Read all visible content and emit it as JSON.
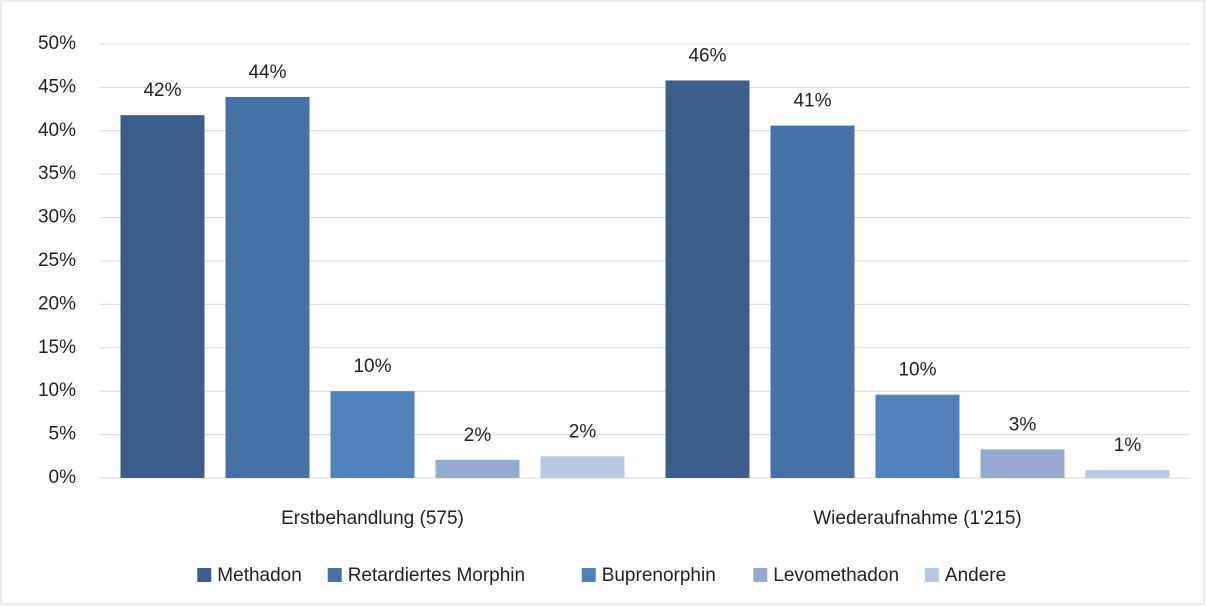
{
  "chart_data": {
    "type": "bar",
    "categories": [
      "Erstbehandlung (575)",
      "Wiederaufnahme (1'215)"
    ],
    "series": [
      {
        "name": "Methadon",
        "color": "#3b5e8c",
        "values": [
          41.8,
          45.8
        ],
        "value_labels": [
          "42%",
          "46%"
        ]
      },
      {
        "name": "Retardiertes Morphin",
        "color": "#4472a6",
        "values": [
          43.9,
          40.6
        ],
        "value_labels": [
          "44%",
          "41%"
        ]
      },
      {
        "name": "Buprenorphin",
        "color": "#4f81bd",
        "values": [
          10.0,
          9.6
        ],
        "value_labels": [
          "10%",
          "10%"
        ]
      },
      {
        "name": "Levomethadon",
        "color": "#95aad0",
        "values": [
          2.1,
          3.3
        ],
        "value_labels": [
          "2%",
          "3%"
        ]
      },
      {
        "name": "Andere",
        "color": "#b9c7e2",
        "values": [
          2.5,
          0.9
        ],
        "value_labels": [
          "2%",
          "1%"
        ]
      }
    ],
    "ylim": [
      0,
      50
    ],
    "yticks": [
      {
        "value": 0,
        "label": "0%"
      },
      {
        "value": 5,
        "label": "5%"
      },
      {
        "value": 10,
        "label": "10%"
      },
      {
        "value": 15,
        "label": "15%"
      },
      {
        "value": 20,
        "label": "20%"
      },
      {
        "value": 25,
        "label": "25%"
      },
      {
        "value": 30,
        "label": "30%"
      },
      {
        "value": 35,
        "label": "35%"
      },
      {
        "value": 40,
        "label": "40%"
      },
      {
        "value": 45,
        "label": "45%"
      },
      {
        "value": 50,
        "label": "50%"
      }
    ],
    "grid": true,
    "legend": "bottom"
  }
}
